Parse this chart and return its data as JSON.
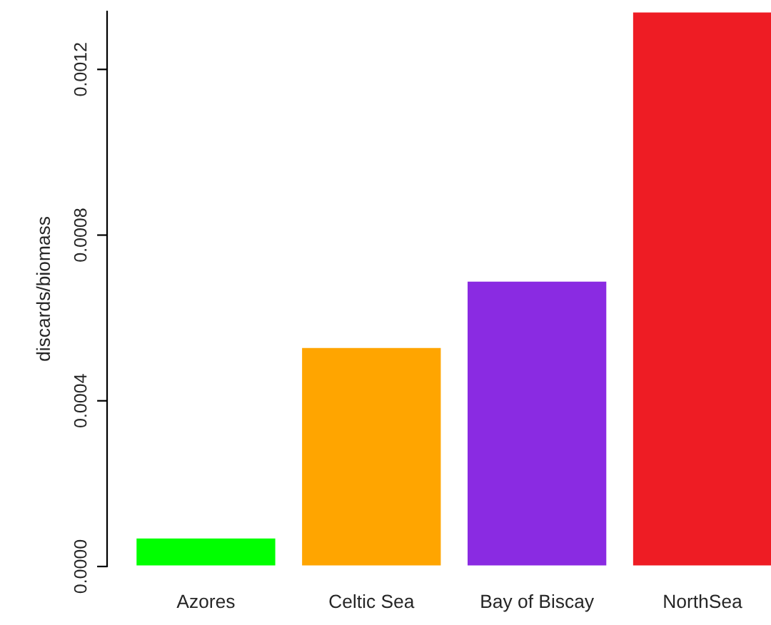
{
  "chart_data": {
    "type": "bar",
    "ylabel": "discards/biomass",
    "categories": [
      "Azores",
      "Celtic Sea",
      "Bay of Biscay",
      "NorthSea"
    ],
    "values": [
      7e-05,
      0.00053,
      0.00069,
      0.00134
    ],
    "colors": [
      "#00ff00",
      "#ffa500",
      "#8a2be2",
      "#ee1c24"
    ],
    "ylim": [
      0,
      0.00134
    ],
    "yticks": [
      {
        "value": 0,
        "label": "0.0000"
      },
      {
        "value": 0.0004,
        "label": "0.0004"
      },
      {
        "value": 0.0008,
        "label": "0.0008"
      },
      {
        "value": 0.0012,
        "label": "0.0012"
      }
    ],
    "grid": false,
    "legend": false
  }
}
